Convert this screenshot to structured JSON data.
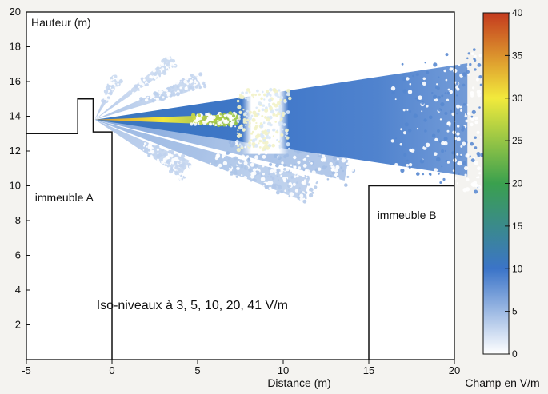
{
  "chart_data": {
    "type": "heatmap",
    "title": "",
    "subtitle": "",
    "xlabel": "Distance (m)",
    "ylabel": "Hauteur (m)",
    "xlim": [
      -5,
      20
    ],
    "ylim": [
      0,
      20
    ],
    "x_ticks": [
      -5,
      0,
      5,
      10,
      15,
      20
    ],
    "y_ticks": [
      2,
      4,
      6,
      8,
      10,
      12,
      14,
      16,
      18,
      20
    ],
    "grid": false,
    "annotation": "Iso-niveaux à 3, 5, 10, 20, 41 V/m",
    "buildings": [
      {
        "label": "immeuble A",
        "outline": [
          [
            -5,
            13
          ],
          [
            -2,
            13
          ],
          [
            -2,
            15
          ],
          [
            -1.1,
            15
          ],
          [
            -1.1,
            13.1
          ],
          [
            0,
            13.1
          ],
          [
            0,
            0
          ]
        ]
      },
      {
        "label": "immeuble B",
        "outline": [
          [
            15,
            0
          ],
          [
            15,
            10
          ],
          [
            20,
            10
          ]
        ]
      }
    ],
    "colorbar": {
      "label": "Champ en V/m",
      "range": [
        0,
        40
      ],
      "ticks": [
        0,
        5,
        10,
        15,
        20,
        25,
        30,
        35,
        40
      ],
      "colors": [
        "#ffffff",
        "#3b74c8",
        "#3aa04e",
        "#f2ea3c",
        "#c43a1e"
      ]
    },
    "antenna": {
      "x": -1,
      "y": 13.8
    },
    "beams": [
      {
        "angle_deg": 0,
        "half_width_deg": 2.2,
        "length_m": 8,
        "value": 35,
        "dissolve_from": 0.65
      },
      {
        "angle_deg": 0,
        "half_width_deg": 8.5,
        "length_m": 22,
        "value": 11,
        "dissolve_from": 0.75,
        "gap_m": [
          8.6,
          11.3
        ]
      },
      {
        "angle_deg": -10,
        "half_width_deg": 3.5,
        "length_m": 15,
        "value": 6,
        "dissolve_from": 0.45
      },
      {
        "angle_deg": -18,
        "half_width_deg": 3.0,
        "length_m": 13,
        "value": 5,
        "dissolve_from": 0.5
      },
      {
        "angle_deg": -28,
        "half_width_deg": 5,
        "length_m": 6,
        "value": 4,
        "dissolve_from": 0.5
      },
      {
        "angle_deg": 20,
        "half_width_deg": 3.5,
        "length_m": 6.5,
        "value": 4,
        "dissolve_from": 0.4
      },
      {
        "angle_deg": 37,
        "half_width_deg": 3.0,
        "length_m": 5.5,
        "value": 3.5,
        "dissolve_from": 0.45
      },
      {
        "angle_deg": 62,
        "half_width_deg": 5.5,
        "length_m": 2.8,
        "value": 3.5,
        "dissolve_from": 0.35
      }
    ]
  }
}
